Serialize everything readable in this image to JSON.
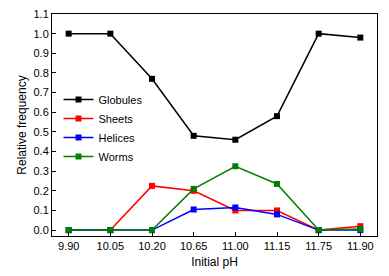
{
  "chart_data": {
    "type": "line",
    "x_label": "Initial pH",
    "y_label": "Relative frequency",
    "categories": [
      "9.90",
      "10.05",
      "10.20",
      "10.65",
      "11.00",
      "11.15",
      "11.75",
      "11.90"
    ],
    "series": [
      {
        "name": "Globules",
        "color": "#000000",
        "marker": "square",
        "values": [
          1.0,
          1.0,
          0.77,
          0.48,
          0.46,
          0.58,
          1.0,
          0.98
        ]
      },
      {
        "name": "Sheets",
        "color": "#ff0000",
        "marker": "square",
        "values": [
          0,
          0,
          0.225,
          0.2,
          0.1,
          0.1,
          0,
          0.02
        ]
      },
      {
        "name": "Helices",
        "color": "#0000ff",
        "marker": "square",
        "values": [
          0,
          0,
          0,
          0.105,
          0.115,
          0.08,
          0,
          0
        ]
      },
      {
        "name": "Worms",
        "color": "#008000",
        "marker": "square",
        "values": [
          0,
          0,
          0,
          0.21,
          0.325,
          0.235,
          0,
          0.005
        ]
      }
    ],
    "ylim": [
      -0.03,
      1.1
    ],
    "yticks": [
      {
        "value": 0,
        "label": "0.0"
      },
      0.1,
      0.2,
      0.3,
      0.4,
      0.5,
      0.6,
      0.7,
      0.8,
      0.9,
      {
        "value": 1,
        "label": "1.0"
      },
      1.1
    ],
    "legend": "center left",
    "grid": false
  }
}
